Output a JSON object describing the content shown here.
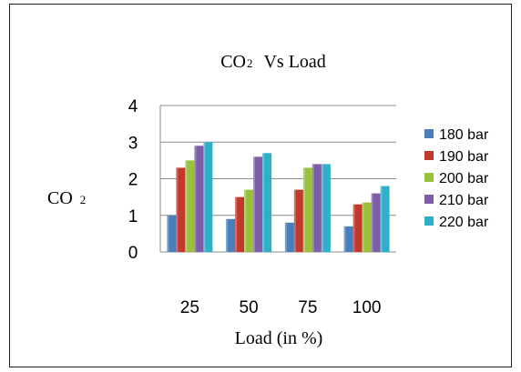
{
  "chart_data": {
    "type": "bar",
    "title": {
      "main": "CO",
      "sub": "2",
      "rest": "Vs Load"
    },
    "ylabel": {
      "main": "CO",
      "sub": "2"
    },
    "xlabel": "Load (in %)",
    "categories": [
      "25",
      "50",
      "75",
      "100"
    ],
    "ylim": [
      0,
      4
    ],
    "yticks": [
      "0",
      "1",
      "2",
      "3",
      "4"
    ],
    "grid": true,
    "legend_position": "right",
    "series": [
      {
        "name": "180 bar",
        "color": "#4a7ebb",
        "values": [
          1.0,
          0.9,
          0.8,
          0.7
        ]
      },
      {
        "name": "190 bar",
        "color": "#c0392b",
        "values": [
          2.3,
          1.5,
          1.7,
          1.3
        ]
      },
      {
        "name": "200 bar",
        "color": "#98c13d",
        "values": [
          2.5,
          1.7,
          2.3,
          1.35
        ]
      },
      {
        "name": "210 bar",
        "color": "#7d5ca8",
        "values": [
          2.9,
          2.6,
          2.4,
          1.6
        ]
      },
      {
        "name": "220 bar",
        "color": "#2fb0c8",
        "values": [
          3.0,
          2.7,
          2.4,
          1.8
        ]
      }
    ]
  }
}
